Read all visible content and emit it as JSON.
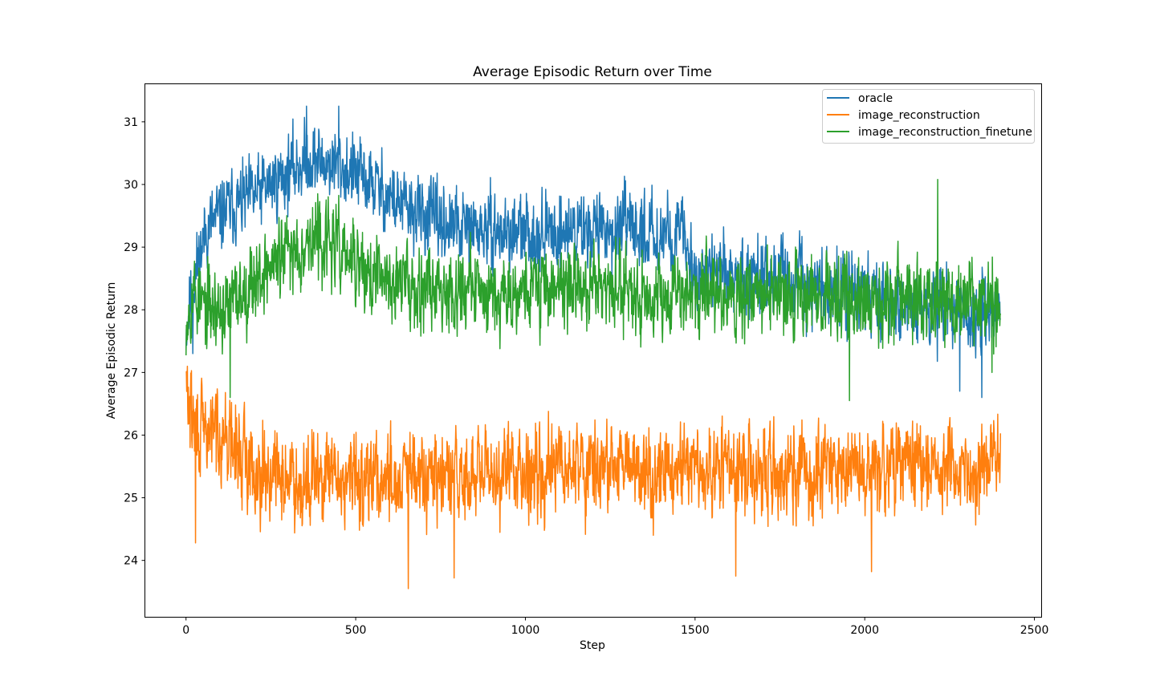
{
  "chart_data": {
    "type": "line",
    "title": "Average Episodic Return over Time",
    "xlabel": "Step",
    "ylabel": "Average Episodic Return",
    "xlim": [
      -120,
      2520
    ],
    "ylim": [
      23.1,
      31.6
    ],
    "xticks": [
      0,
      500,
      1000,
      1500,
      2000,
      2500
    ],
    "yticks": [
      24,
      25,
      26,
      27,
      28,
      29,
      30,
      31
    ],
    "grid": false,
    "legend_position": "top-right",
    "n_points": 2401,
    "series": [
      {
        "name": "oracle",
        "color": "#1f77b4",
        "trend": [
          [
            0,
            27.7
          ],
          [
            20,
            28.4
          ],
          [
            60,
            29.3
          ],
          [
            120,
            29.6
          ],
          [
            200,
            29.8
          ],
          [
            300,
            30.2
          ],
          [
            360,
            30.4
          ],
          [
            450,
            30.3
          ],
          [
            550,
            30.0
          ],
          [
            650,
            29.6
          ],
          [
            800,
            29.3
          ],
          [
            1000,
            29.2
          ],
          [
            1200,
            29.3
          ],
          [
            1460,
            29.2
          ],
          [
            1500,
            28.6
          ],
          [
            1700,
            28.6
          ],
          [
            1800,
            28.4
          ],
          [
            1950,
            28.3
          ],
          [
            2100,
            28.1
          ],
          [
            2300,
            28.0
          ],
          [
            2400,
            27.9
          ]
        ],
        "noise_amplitude": 0.45,
        "seed": 11,
        "extremes": [
          [
            20,
            27.3
          ],
          [
            355,
            31.25
          ],
          [
            450,
            31.25
          ],
          [
            2345,
            26.6
          ],
          [
            2280,
            26.7
          ]
        ]
      },
      {
        "name": "image_reconstruction",
        "color": "#ff7f0e",
        "trend": [
          [
            0,
            26.8
          ],
          [
            15,
            26.3
          ],
          [
            40,
            26.0
          ],
          [
            100,
            26.1
          ],
          [
            150,
            25.7
          ],
          [
            200,
            25.5
          ],
          [
            300,
            25.3
          ],
          [
            400,
            25.3
          ],
          [
            550,
            25.3
          ],
          [
            700,
            25.3
          ],
          [
            850,
            25.3
          ],
          [
            1000,
            25.5
          ],
          [
            1200,
            25.5
          ],
          [
            1500,
            25.4
          ],
          [
            1700,
            25.4
          ],
          [
            1900,
            25.4
          ],
          [
            2100,
            25.5
          ],
          [
            2300,
            25.5
          ],
          [
            2400,
            25.5
          ]
        ],
        "noise_amplitude": 0.55,
        "seed": 29,
        "extremes": [
          [
            28,
            24.28
          ],
          [
            655,
            23.55
          ],
          [
            790,
            23.72
          ],
          [
            1620,
            23.75
          ],
          [
            2020,
            23.82
          ]
        ]
      },
      {
        "name": "image_reconstruction_finetune",
        "color": "#2ca02c",
        "trend": [
          [
            0,
            27.9
          ],
          [
            20,
            28.3
          ],
          [
            60,
            28.0
          ],
          [
            120,
            28.0
          ],
          [
            200,
            28.5
          ],
          [
            300,
            28.9
          ],
          [
            360,
            29.1
          ],
          [
            420,
            29.1
          ],
          [
            480,
            28.8
          ],
          [
            550,
            28.5
          ],
          [
            700,
            28.4
          ],
          [
            900,
            28.3
          ],
          [
            1100,
            28.4
          ],
          [
            1300,
            28.3
          ],
          [
            1500,
            28.3
          ],
          [
            1700,
            28.2
          ],
          [
            1900,
            28.2
          ],
          [
            2100,
            28.2
          ],
          [
            2300,
            28.1
          ],
          [
            2400,
            28.1
          ]
        ],
        "noise_amplitude": 0.5,
        "seed": 53,
        "extremes": [
          [
            130,
            26.6
          ],
          [
            1955,
            26.55
          ],
          [
            2215,
            30.08
          ],
          [
            2375,
            27.0
          ]
        ]
      }
    ]
  }
}
